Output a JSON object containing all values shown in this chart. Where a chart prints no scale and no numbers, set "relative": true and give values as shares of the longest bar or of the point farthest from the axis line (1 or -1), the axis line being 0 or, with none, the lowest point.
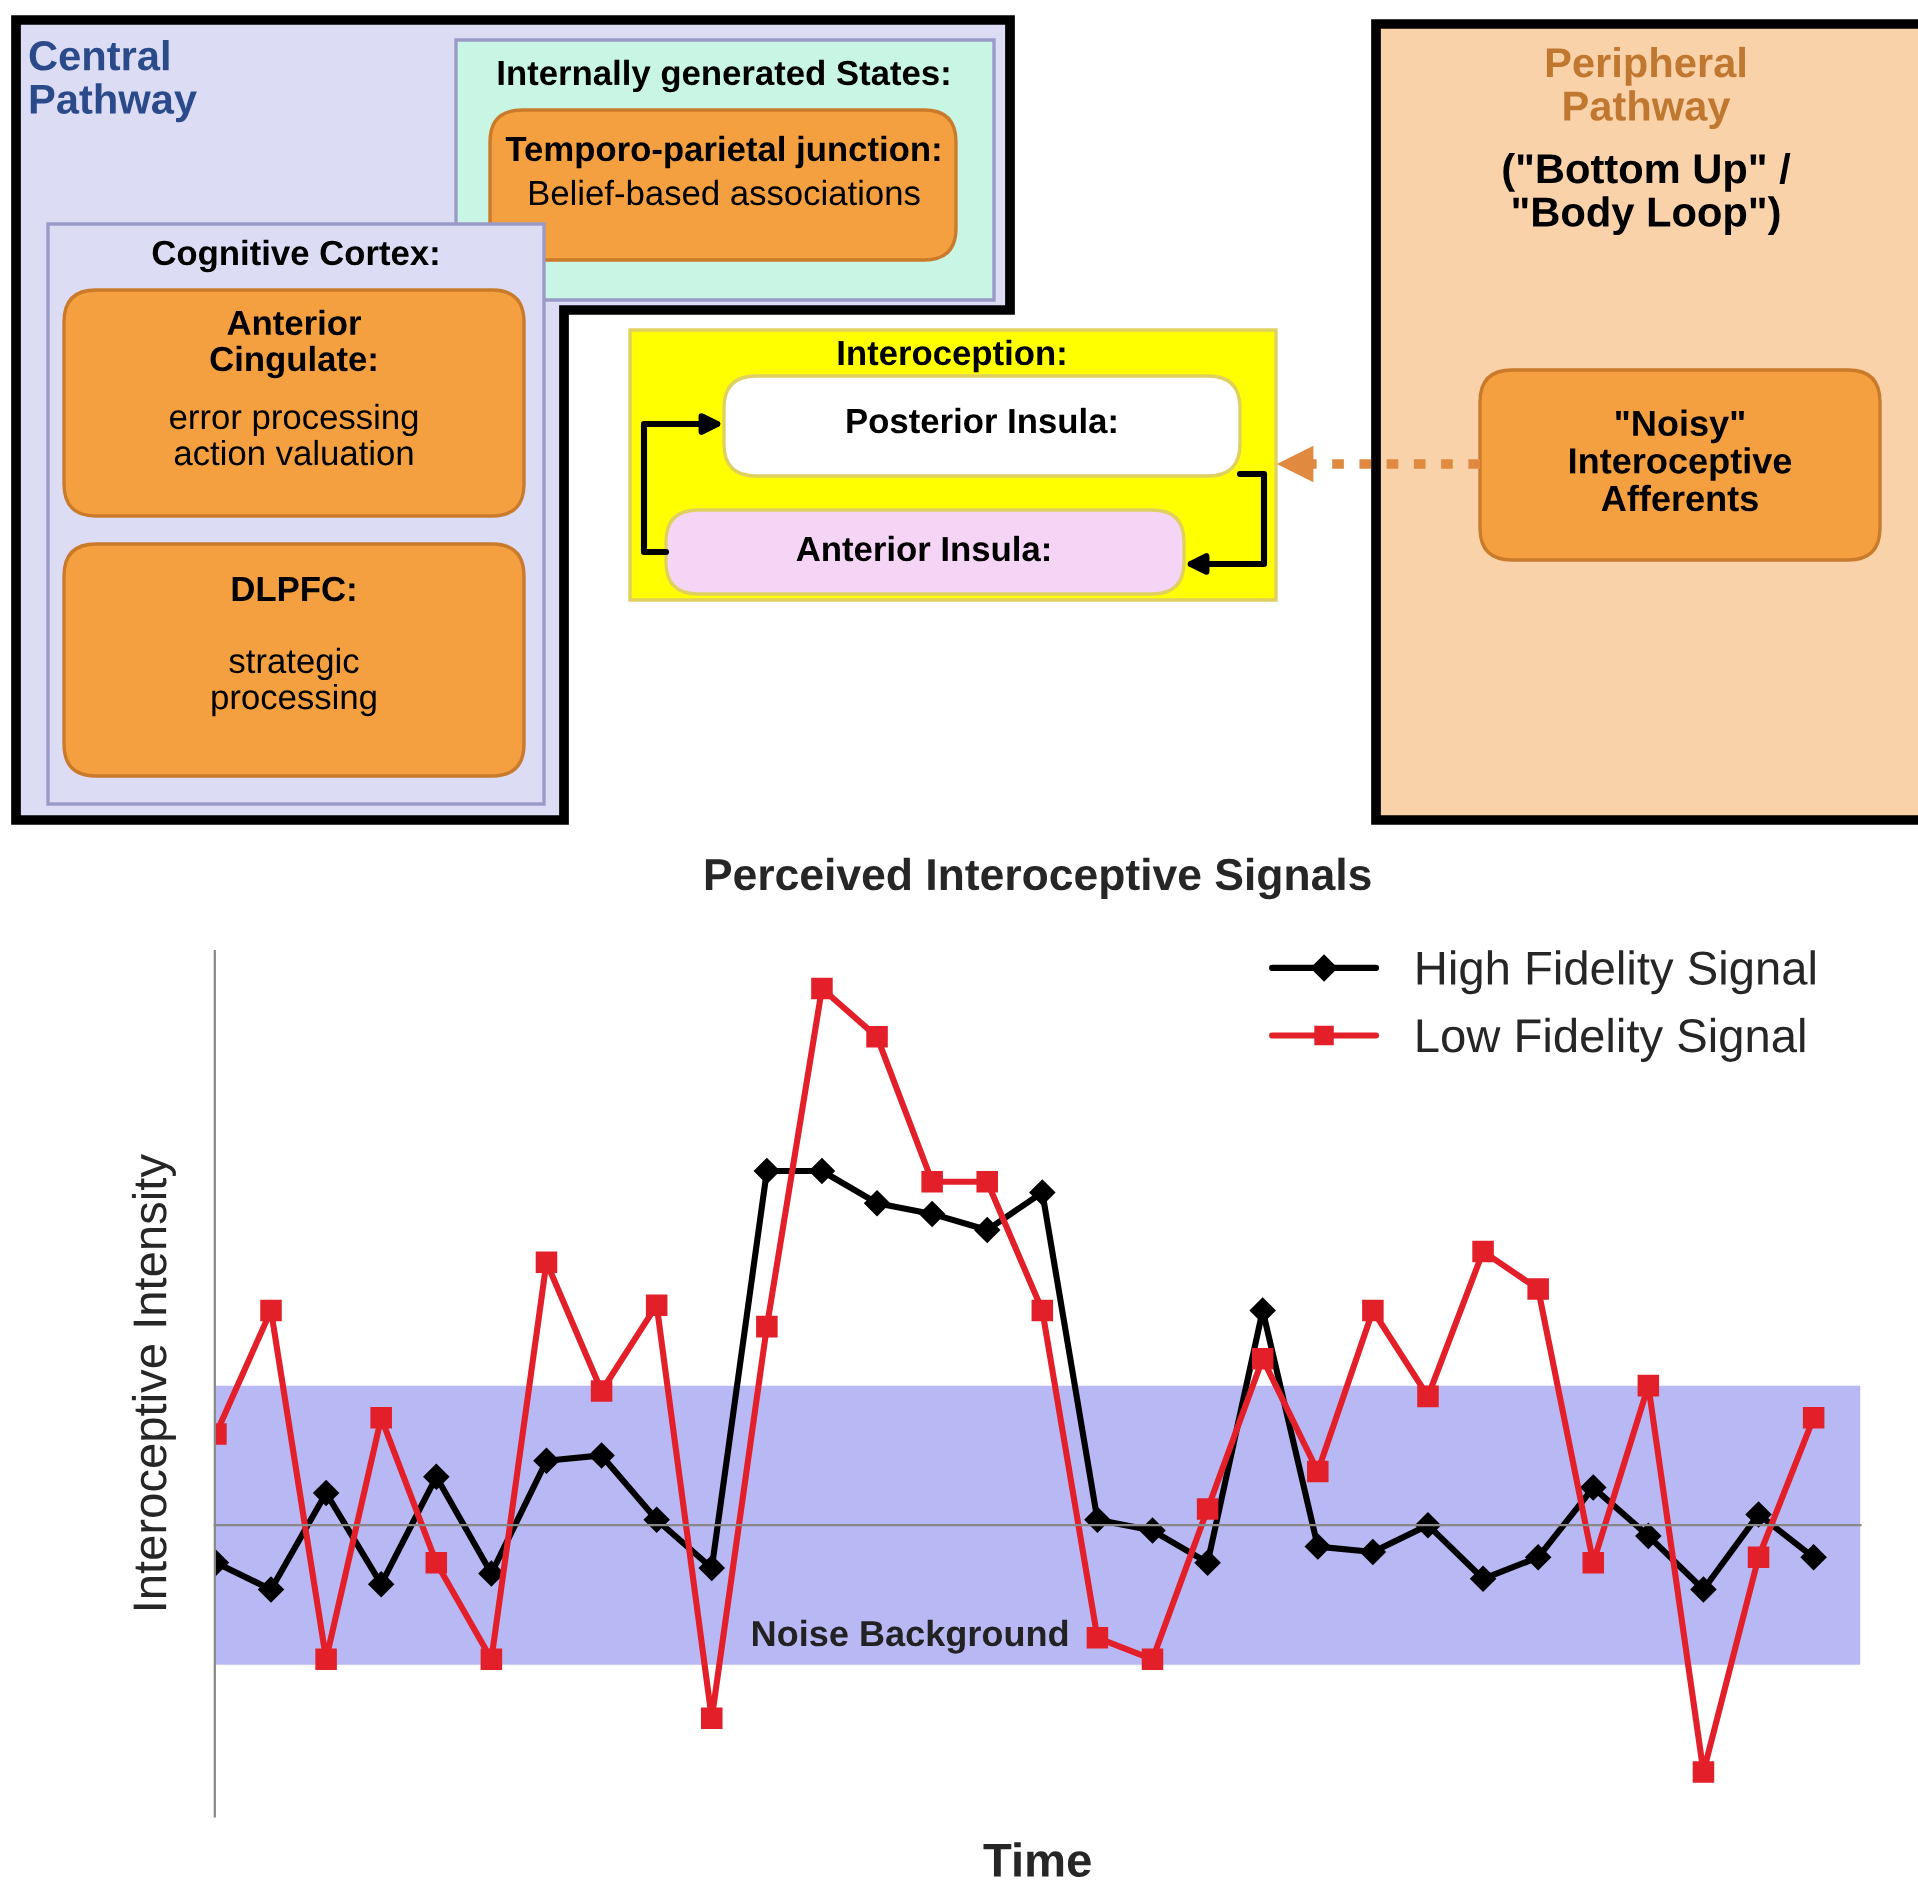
{
  "chart_data": [
    {
      "type": "other",
      "annotations": [
        "Central\nPathway",
        "Internally generated States:",
        "Temporo-parietal junction:",
        "Belief-based associations",
        "Cognitive Cortex:",
        "Anterior\nCingulate:",
        "error processing\naction valuation",
        "DLPFC:",
        "strategic\nprocessing",
        "Interoception:",
        "Posterior Insula:",
        "Anterior Insula:",
        "Peripheral\nPathway",
        "(\"Bottom Up\" /\n\"Body Loop\")",
        "\"Noisy\"\nInteroceptive\nAfferents"
      ]
    },
    {
      "type": "line",
      "title": "Perceived Interoceptive Signals",
      "xlabel": "Time",
      "ylabel": "Interoceptive Intensity",
      "relative": true,
      "legend": "top right",
      "categories": [
        null,
        null,
        null,
        null,
        null,
        null,
        null,
        null,
        null,
        null,
        null,
        null,
        null,
        null,
        null,
        null,
        null,
        null,
        null,
        null,
        null,
        null,
        null,
        null,
        null,
        null,
        null,
        null,
        null,
        null
      ],
      "series": [
        {
          "name": "High Fidelity Signal",
          "color": "#000000",
          "marker": "diamond",
          "values": [
            -0.07,
            -0.12,
            0.06,
            -0.11,
            0.09,
            -0.09,
            0.12,
            0.13,
            0.01,
            -0.08,
            0.66,
            0.66,
            0.6,
            0.58,
            0.55,
            0.62,
            0.01,
            -0.01,
            -0.07,
            0.4,
            -0.04,
            -0.05,
            0.0,
            -0.1,
            -0.06,
            0.07,
            -0.02,
            -0.12,
            0.02,
            -0.06
          ]
        },
        {
          "name": "Low Fidelity Signal",
          "color": "#e3202a",
          "marker": "square",
          "values": [
            0.17,
            0.4,
            -0.25,
            0.2,
            -0.07,
            -0.25,
            0.49,
            0.25,
            0.41,
            -0.36,
            0.37,
            1.0,
            0.91,
            0.64,
            0.64,
            0.4,
            -0.21,
            -0.25,
            0.03,
            0.31,
            0.1,
            0.4,
            0.24,
            0.51,
            0.44,
            -0.07,
            0.26,
            -0.46,
            -0.06,
            0.2
          ]
        }
      ],
      "bands": [
        {
          "axis": "y",
          "from": -0.26,
          "to": 0.26,
          "label": "Noise Background",
          "color": "#b8b8f4"
        }
      ]
    }
  ]
}
